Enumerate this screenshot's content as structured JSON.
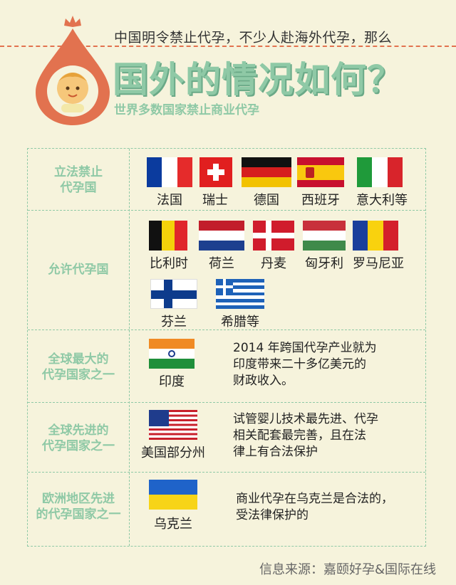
{
  "header": {
    "subtitle": "中国明令禁止代孕，不少人赴海外代孕，那么",
    "title": "国外的情况如何？",
    "note": "世界多数国家禁止商业代孕"
  },
  "rows": [
    {
      "category": [
        "立法禁止",
        "代孕国"
      ],
      "countries": [
        "法国",
        "瑞士",
        "德国",
        "西班牙",
        "意大利等"
      ]
    },
    {
      "category": [
        "允许代孕国"
      ],
      "countries": [
        "比利时",
        "荷兰",
        "丹麦",
        "匈牙利",
        "罗马尼亚",
        "芬兰",
        "希腊等"
      ]
    },
    {
      "category": [
        "全球最大的",
        "代孕国家之一"
      ],
      "countries": [
        "印度"
      ],
      "description": [
        "2014 年跨国代孕产业就为",
        "印度带来二十多亿美元的",
        "财政收入。"
      ]
    },
    {
      "category": [
        "全球先进的",
        "代孕国家之一"
      ],
      "countries": [
        "美国部分州"
      ],
      "description": [
        "试管婴儿技术最先进、代孕",
        "相关配套最完善，且在法",
        "律上有合法保护"
      ]
    },
    {
      "category": [
        "欧洲地区先进",
        "的代孕国家之一"
      ],
      "countries": [
        "乌克兰"
      ],
      "description": [
        "商业代孕在乌克兰是合法的，",
        "受法律保护的"
      ]
    }
  ],
  "source": "信息来源：嘉颐好孕&国际在线",
  "colors": {
    "accent_green": "#8fc9a6",
    "accent_orange": "#e2724f",
    "background": "#f6f3dc"
  }
}
